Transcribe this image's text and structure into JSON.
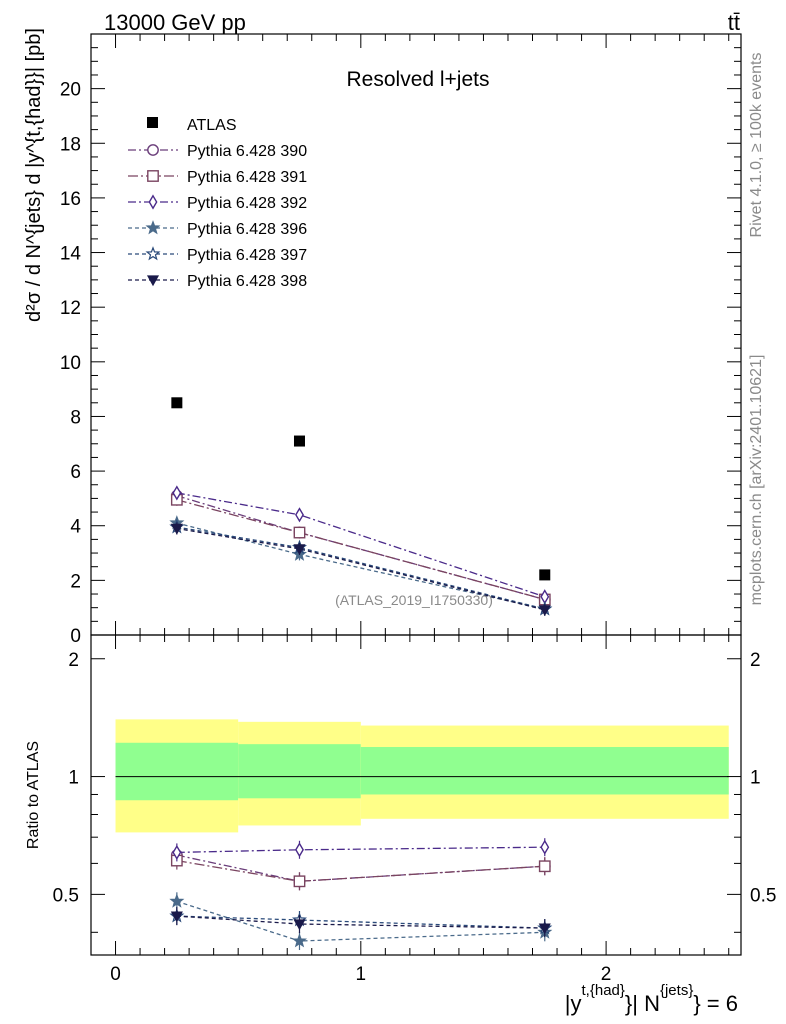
{
  "header": {
    "energy_label": "13000 GeV pp",
    "process_label": "tt̄"
  },
  "side": {
    "rivet_label": "Rivet 4.1.0, ≥ 100k events",
    "mcplots_label": "mcplots.cern.ch [arXiv:2401.10621]"
  },
  "colors": {
    "band_outer": "#ffff88",
    "band_inner": "#90ff90",
    "p390": "#6a3d7a",
    "p391": "#7a4460",
    "p392": "#4a2a8a",
    "p396": "#4a6a8a",
    "p397": "#2a4a7a",
    "p398": "#1a1a4a"
  },
  "chart_data": {
    "type": "line",
    "title": "Resolved l+jets",
    "watermark": "(ATLAS_2019_I1750330)",
    "xlabel_main": "|y",
    "xlabel_sup1": "t,{had}",
    "xlabel_mid": "}| N",
    "xlabel_sup2": "{jets}",
    "xlabel_tail": "} = 6",
    "ylabel_main": "d²σ / d N^{jets} d |y^{t,{had}}| [pb]",
    "ylabel_ratio": "Ratio to ATLAS",
    "xlim": [
      -0.1,
      2.55
    ],
    "ylim_main": [
      0,
      22
    ],
    "ylim_ratio": [
      0.35,
      2.3
    ],
    "x_ticks": [
      "0",
      "1",
      "2"
    ],
    "x_tick_values": [
      0,
      1,
      2
    ],
    "y_ticks_main": [
      "0",
      "2",
      "4",
      "6",
      "8",
      "10",
      "12",
      "14",
      "16",
      "18",
      "20"
    ],
    "y_tick_values_main": [
      0,
      2,
      4,
      6,
      8,
      10,
      12,
      14,
      16,
      18,
      20
    ],
    "y_ticks_ratio": [
      "0.5",
      "1",
      "2"
    ],
    "y_tick_values_ratio": [
      0.5,
      1,
      2
    ],
    "bins": [
      [
        0,
        0.5
      ],
      [
        0.5,
        1.0
      ],
      [
        1.0,
        2.5
      ]
    ],
    "x": [
      0.25,
      0.75,
      1.75
    ],
    "atlas": {
      "name": "ATLAS",
      "values": [
        8.5,
        7.1,
        2.2
      ]
    },
    "ratio_band_outer": [
      [
        0.72,
        1.4
      ],
      [
        0.75,
        1.38
      ],
      [
        0.78,
        1.35
      ]
    ],
    "ratio_band_inner": [
      [
        0.87,
        1.22
      ],
      [
        0.88,
        1.21
      ],
      [
        0.9,
        1.19
      ]
    ],
    "series": [
      {
        "name": "Pythia 6.428 390",
        "key": "p390",
        "marker": "circle-open",
        "dash": "8 3 2 3",
        "values": [
          5.1,
          3.75,
          1.3
        ],
        "ratio": [
          0.63,
          0.54,
          0.59
        ]
      },
      {
        "name": "Pythia 6.428 391",
        "key": "p391",
        "marker": "square-open",
        "dash": "10 3 2 3",
        "values": [
          4.95,
          3.75,
          1.3
        ],
        "ratio": [
          0.61,
          0.54,
          0.59
        ]
      },
      {
        "name": "Pythia 6.428 392",
        "key": "p392",
        "marker": "diamond-open",
        "dash": "8 3 2 3",
        "values": [
          5.2,
          4.4,
          1.4
        ],
        "ratio": [
          0.64,
          0.65,
          0.66
        ]
      },
      {
        "name": "Pythia 6.428 396",
        "key": "p396",
        "marker": "star-filled",
        "dash": "4 3",
        "values": [
          4.1,
          2.95,
          0.95
        ],
        "ratio": [
          0.48,
          0.38,
          0.4
        ]
      },
      {
        "name": "Pythia 6.428 397",
        "key": "p397",
        "marker": "star-open",
        "dash": "4 3",
        "values": [
          3.95,
          3.2,
          0.95
        ],
        "ratio": [
          0.44,
          0.43,
          0.41
        ]
      },
      {
        "name": "Pythia 6.428 398",
        "key": "p398",
        "marker": "triangle-down",
        "dash": "4 3",
        "values": [
          3.9,
          3.15,
          0.92
        ],
        "ratio": [
          0.44,
          0.42,
          0.41
        ]
      }
    ]
  }
}
